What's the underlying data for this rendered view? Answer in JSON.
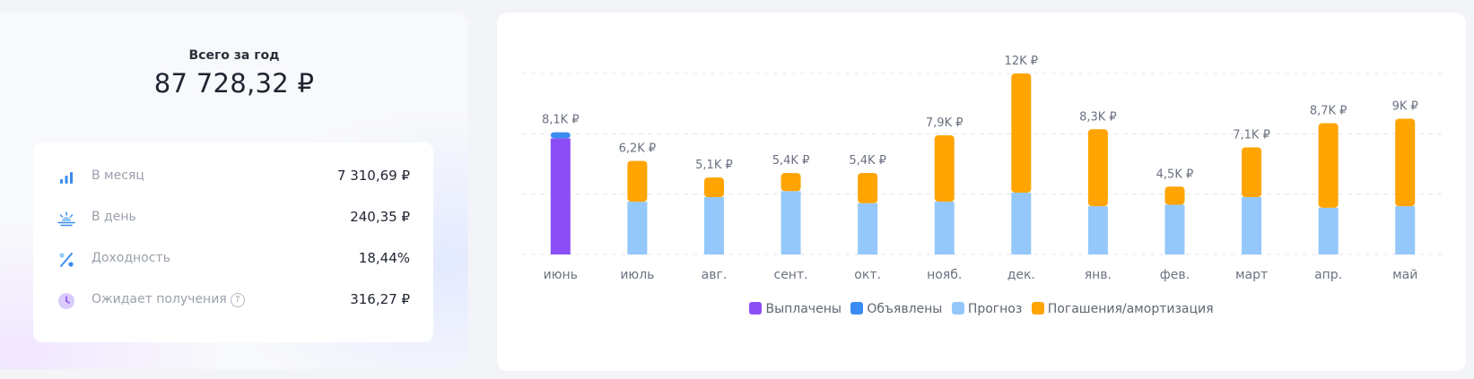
{
  "summary": {
    "total_label": "Всего за год",
    "total_value": "87 728,32 ₽",
    "stats": [
      {
        "icon": "bar-chart-icon",
        "label": "В месяц",
        "value": "7 310,69 ₽"
      },
      {
        "icon": "sunrise-icon",
        "label": "В день",
        "value": "240,35 ₽"
      },
      {
        "icon": "percent-icon",
        "label": "Доходность",
        "value": "18,44%"
      },
      {
        "icon": "clock-icon",
        "label": "Ожидает получения",
        "value": "316,27 ₽",
        "help": "?"
      }
    ]
  },
  "colors": {
    "paid": "#8b4ef5",
    "announced": "#3b8cf2",
    "forecast": "#94c8fb",
    "redemption": "#ffa400"
  },
  "chart_data": {
    "type": "bar",
    "stacked": true,
    "categories": [
      "июнь",
      "июль",
      "авг.",
      "сент.",
      "окт.",
      "нояб.",
      "дек.",
      "янв.",
      "фев.",
      "март",
      "апр.",
      "май"
    ],
    "totals_labels": [
      "8,1K ₽",
      "6,2K ₽",
      "5,1K ₽",
      "5,4K ₽",
      "5,4K ₽",
      "7,9K ₽",
      "12K ₽",
      "8,3K ₽",
      "4,5K ₽",
      "7,1K ₽",
      "8,7K ₽",
      "9K ₽"
    ],
    "series": [
      {
        "name": "Выплачены",
        "key": "paid",
        "values": [
          7700,
          0,
          0,
          0,
          0,
          0,
          0,
          0,
          0,
          0,
          0,
          0
        ]
      },
      {
        "name": "Объявлены",
        "key": "announced",
        "values": [
          400,
          0,
          0,
          0,
          0,
          0,
          0,
          0,
          0,
          0,
          0,
          0
        ]
      },
      {
        "name": "Прогноз",
        "key": "forecast",
        "values": [
          0,
          3500,
          3800,
          4200,
          3400,
          3500,
          4100,
          3200,
          3300,
          3800,
          3100,
          3200
        ]
      },
      {
        "name": "Погашения/амортизация",
        "key": "redemption",
        "values": [
          0,
          2700,
          1300,
          1200,
          2000,
          4400,
          7900,
          5100,
          1200,
          3300,
          5600,
          5800
        ]
      }
    ],
    "ylim": [
      0,
      12000
    ],
    "grid": true,
    "legend_position": "bottom"
  }
}
